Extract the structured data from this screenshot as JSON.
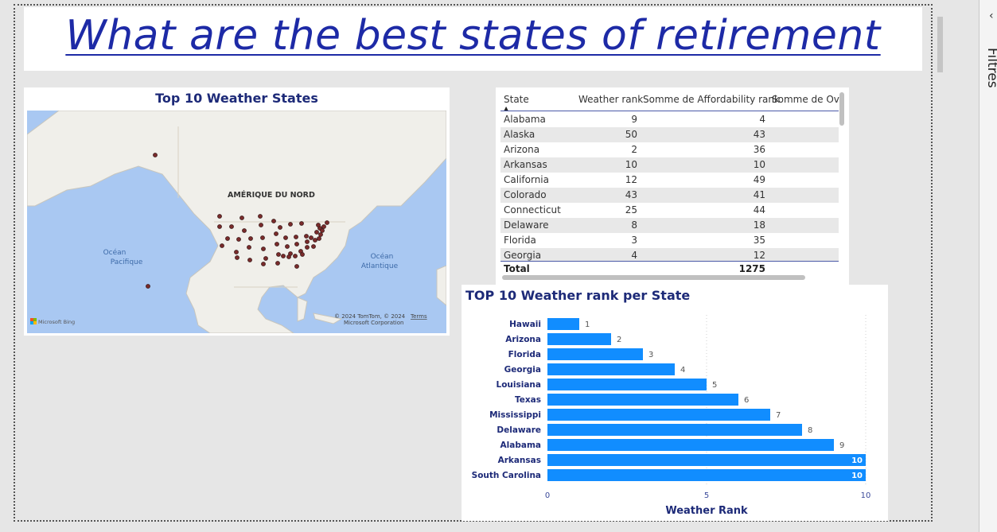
{
  "page": {
    "title": "What are the best states of retirement",
    "side_panel_label": "Filtres",
    "side_panel_collapse_icon": "chevron-left-icon"
  },
  "map": {
    "title": "Top 10 Weather States",
    "labels": {
      "continent": "AMÉRIQUE DU NORD",
      "pacific_1": "Océan",
      "pacific_2": "Pacifique",
      "atlantic_1": "Océan",
      "atlantic_2": "Atlantique"
    },
    "brand": "Microsoft Bing",
    "copyright_1": "© 2024 TomTom, © 2024",
    "copyright_2": "Microsoft Corporation",
    "terms": "Terms",
    "colors": {
      "water": "#a9c8f2",
      "land": "#f0efea",
      "marker": "#7a2b2b"
    }
  },
  "table": {
    "columns": [
      "State",
      "Weather rank",
      "Somme de Affordability rank",
      "Somme de Over"
    ],
    "sort_icon": "sort-ascending-icon",
    "rows": [
      {
        "state": "Alabama",
        "weather": "9",
        "afford": "4"
      },
      {
        "state": "Alaska",
        "weather": "50",
        "afford": "43"
      },
      {
        "state": "Arizona",
        "weather": "2",
        "afford": "36"
      },
      {
        "state": "Arkansas",
        "weather": "10",
        "afford": "10"
      },
      {
        "state": "California",
        "weather": "12",
        "afford": "49"
      },
      {
        "state": "Colorado",
        "weather": "43",
        "afford": "41"
      },
      {
        "state": "Connecticut",
        "weather": "25",
        "afford": "44"
      },
      {
        "state": "Delaware",
        "weather": "8",
        "afford": "18"
      },
      {
        "state": "Florida",
        "weather": "3",
        "afford": "35"
      },
      {
        "state": "Georgia",
        "weather": "4",
        "afford": "12"
      }
    ],
    "total_label": "Total",
    "total_afford": "1275"
  },
  "chart_data": {
    "type": "bar",
    "orientation": "horizontal",
    "title": "TOP 10 Weather rank per State",
    "xlabel": "Weather Rank",
    "ylabel": "",
    "categories": [
      "Hawaii",
      "Arizona",
      "Florida",
      "Georgia",
      "Louisiana",
      "Texas",
      "Mississippi",
      "Delaware",
      "Alabama",
      "Arkansas",
      "South Carolina"
    ],
    "values": [
      1,
      2,
      3,
      4,
      5,
      6,
      7,
      8,
      9,
      10,
      10
    ],
    "xlim": [
      0,
      10
    ],
    "xticks": [
      0,
      5,
      10
    ],
    "grid": true,
    "bar_color": "#118dff",
    "label_color": "#1d2a78"
  }
}
